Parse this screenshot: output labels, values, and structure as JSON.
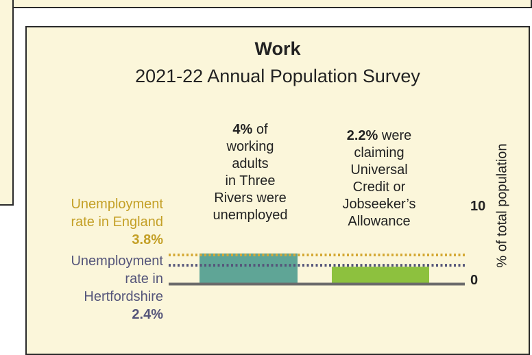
{
  "chart_data": {
    "type": "bar",
    "title": "Work",
    "subtitle": "2021-22 Annual Population Survey",
    "ylabel": "% of total population",
    "yticks": [
      "10",
      "0"
    ],
    "ylim": [
      0,
      10
    ],
    "categories": [
      "4% of working adults in Three Rivers were unemployed",
      "2.2% were claiming Universal Credit or Jobseeker’s Allowance"
    ],
    "values": [
      4,
      2.2
    ],
    "colors": {
      "bar1": "#5fa596",
      "bar2": "#8dc13e",
      "england": "#d4a935",
      "herts": "#55557a",
      "baseline": "#6b6b6b"
    },
    "annotations": [
      {
        "bold": "4%",
        "rest_line1": " of",
        "rest": [
          "working",
          "adults",
          "in Three",
          "Rivers were",
          "unemployed"
        ]
      },
      {
        "bold": "2.2%",
        "rest_line1": " were",
        "rest": [
          "claiming",
          "Universal",
          "Credit or",
          "Jobseeker’s",
          "Allowance"
        ]
      }
    ],
    "reference_lines": [
      {
        "name": "Unemployment rate in England",
        "label_lines": [
          "Unemployment",
          "rate in England"
        ],
        "value_label": "3.8%",
        "value": 3.8
      },
      {
        "name": "Unemployment rate in Hertfordshire",
        "label_lines": [
          "Unemployment",
          "rate in",
          "Hertfordshire"
        ],
        "value_label": "2.4%",
        "value": 2.4
      }
    ]
  }
}
